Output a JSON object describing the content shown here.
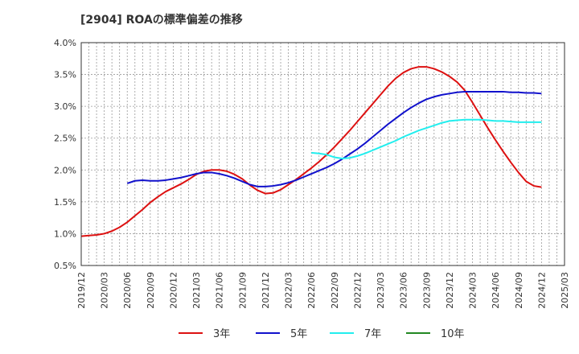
{
  "chart_data": {
    "type": "line",
    "title": "[2904]  ROAの標準偏差の推移",
    "xlabel": "",
    "ylabel": "",
    "ylim": [
      0.5,
      4.0
    ],
    "yticks": [
      0.5,
      1.0,
      1.5,
      2.0,
      2.5,
      3.0,
      3.5,
      4.0
    ],
    "ytick_labels": [
      "0.5%",
      "1.0%",
      "1.5%",
      "2.0%",
      "2.5%",
      "3.0%",
      "3.5%",
      "4.0%"
    ],
    "xlim": [
      "2019/12",
      "2025/03"
    ],
    "xtick_labels": [
      "2019/12",
      "2020/03",
      "2020/06",
      "2020/09",
      "2020/12",
      "2021/03",
      "2021/06",
      "2021/09",
      "2021/12",
      "2022/03",
      "2022/06",
      "2022/09",
      "2022/12",
      "2023/03",
      "2023/06",
      "2023/09",
      "2023/12",
      "2024/03",
      "2024/06",
      "2024/09",
      "2024/12",
      "2025/03"
    ],
    "grid": true,
    "legend_position": "bottom",
    "series": [
      {
        "name": "3年",
        "color": "#dd1111",
        "points": [
          [
            "2019/12",
            0.96
          ],
          [
            "2020/01",
            0.97
          ],
          [
            "2020/02",
            0.98
          ],
          [
            "2020/03",
            1.0
          ],
          [
            "2020/04",
            1.04
          ],
          [
            "2020/05",
            1.1
          ],
          [
            "2020/06",
            1.18
          ],
          [
            "2020/07",
            1.28
          ],
          [
            "2020/08",
            1.38
          ],
          [
            "2020/09",
            1.49
          ],
          [
            "2020/10",
            1.58
          ],
          [
            "2020/11",
            1.66
          ],
          [
            "2020/12",
            1.72
          ],
          [
            "2021/01",
            1.78
          ],
          [
            "2021/02",
            1.85
          ],
          [
            "2021/03",
            1.93
          ],
          [
            "2021/04",
            1.98
          ],
          [
            "2021/05",
            2.0
          ],
          [
            "2021/06",
            2.0
          ],
          [
            "2021/07",
            1.98
          ],
          [
            "2021/08",
            1.93
          ],
          [
            "2021/09",
            1.86
          ],
          [
            "2021/10",
            1.76
          ],
          [
            "2021/11",
            1.68
          ],
          [
            "2021/12",
            1.63
          ],
          [
            "2022/01",
            1.64
          ],
          [
            "2022/02",
            1.69
          ],
          [
            "2022/03",
            1.77
          ],
          [
            "2022/04",
            1.85
          ],
          [
            "2022/05",
            1.94
          ],
          [
            "2022/06",
            2.03
          ],
          [
            "2022/07",
            2.13
          ],
          [
            "2022/08",
            2.24
          ],
          [
            "2022/09",
            2.36
          ],
          [
            "2022/10",
            2.49
          ],
          [
            "2022/11",
            2.62
          ],
          [
            "2022/12",
            2.76
          ],
          [
            "2023/01",
            2.9
          ],
          [
            "2023/02",
            3.04
          ],
          [
            "2023/03",
            3.18
          ],
          [
            "2023/04",
            3.32
          ],
          [
            "2023/05",
            3.44
          ],
          [
            "2023/06",
            3.53
          ],
          [
            "2023/07",
            3.59
          ],
          [
            "2023/08",
            3.62
          ],
          [
            "2023/09",
            3.62
          ],
          [
            "2023/10",
            3.59
          ],
          [
            "2023/11",
            3.54
          ],
          [
            "2023/12",
            3.47
          ],
          [
            "2024/01",
            3.38
          ],
          [
            "2024/02",
            3.25
          ],
          [
            "2024/03",
            3.06
          ],
          [
            "2024/04",
            2.86
          ],
          [
            "2024/05",
            2.66
          ],
          [
            "2024/06",
            2.47
          ],
          [
            "2024/07",
            2.29
          ],
          [
            "2024/08",
            2.12
          ],
          [
            "2024/09",
            1.96
          ],
          [
            "2024/10",
            1.82
          ],
          [
            "2024/11",
            1.75
          ],
          [
            "2024/12",
            1.73
          ]
        ]
      },
      {
        "name": "5年",
        "color": "#1111cc",
        "points": [
          [
            "2020/06",
            1.79
          ],
          [
            "2020/07",
            1.83
          ],
          [
            "2020/08",
            1.84
          ],
          [
            "2020/09",
            1.83
          ],
          [
            "2020/10",
            1.83
          ],
          [
            "2020/11",
            1.84
          ],
          [
            "2020/12",
            1.86
          ],
          [
            "2021/01",
            1.88
          ],
          [
            "2021/02",
            1.91
          ],
          [
            "2021/03",
            1.94
          ],
          [
            "2021/04",
            1.96
          ],
          [
            "2021/05",
            1.96
          ],
          [
            "2021/06",
            1.94
          ],
          [
            "2021/07",
            1.91
          ],
          [
            "2021/08",
            1.87
          ],
          [
            "2021/09",
            1.82
          ],
          [
            "2021/10",
            1.77
          ],
          [
            "2021/11",
            1.74
          ],
          [
            "2021/12",
            1.74
          ],
          [
            "2022/01",
            1.75
          ],
          [
            "2022/02",
            1.77
          ],
          [
            "2022/03",
            1.8
          ],
          [
            "2022/04",
            1.84
          ],
          [
            "2022/05",
            1.89
          ],
          [
            "2022/06",
            1.94
          ],
          [
            "2022/07",
            1.99
          ],
          [
            "2022/08",
            2.04
          ],
          [
            "2022/09",
            2.1
          ],
          [
            "2022/10",
            2.17
          ],
          [
            "2022/11",
            2.25
          ],
          [
            "2022/12",
            2.33
          ],
          [
            "2023/01",
            2.42
          ],
          [
            "2023/02",
            2.52
          ],
          [
            "2023/03",
            2.62
          ],
          [
            "2023/04",
            2.72
          ],
          [
            "2023/05",
            2.81
          ],
          [
            "2023/06",
            2.9
          ],
          [
            "2023/07",
            2.98
          ],
          [
            "2023/08",
            3.05
          ],
          [
            "2023/09",
            3.11
          ],
          [
            "2023/10",
            3.15
          ],
          [
            "2023/11",
            3.18
          ],
          [
            "2023/12",
            3.2
          ],
          [
            "2024/01",
            3.22
          ],
          [
            "2024/02",
            3.23
          ],
          [
            "2024/03",
            3.23
          ],
          [
            "2024/04",
            3.23
          ],
          [
            "2024/05",
            3.23
          ],
          [
            "2024/06",
            3.23
          ],
          [
            "2024/07",
            3.23
          ],
          [
            "2024/08",
            3.22
          ],
          [
            "2024/09",
            3.22
          ],
          [
            "2024/10",
            3.21
          ],
          [
            "2024/11",
            3.21
          ],
          [
            "2024/12",
            3.2
          ]
        ]
      },
      {
        "name": "7年",
        "color": "#22eeee",
        "points": [
          [
            "2022/06",
            2.27
          ],
          [
            "2022/07",
            2.26
          ],
          [
            "2022/08",
            2.24
          ],
          [
            "2022/09",
            2.2
          ],
          [
            "2022/10",
            2.18
          ],
          [
            "2022/11",
            2.19
          ],
          [
            "2022/12",
            2.22
          ],
          [
            "2023/01",
            2.26
          ],
          [
            "2023/02",
            2.31
          ],
          [
            "2023/03",
            2.36
          ],
          [
            "2023/04",
            2.41
          ],
          [
            "2023/05",
            2.46
          ],
          [
            "2023/06",
            2.52
          ],
          [
            "2023/07",
            2.57
          ],
          [
            "2023/08",
            2.62
          ],
          [
            "2023/09",
            2.66
          ],
          [
            "2023/10",
            2.7
          ],
          [
            "2023/11",
            2.74
          ],
          [
            "2023/12",
            2.77
          ],
          [
            "2024/01",
            2.78
          ],
          [
            "2024/02",
            2.79
          ],
          [
            "2024/03",
            2.79
          ],
          [
            "2024/04",
            2.79
          ],
          [
            "2024/05",
            2.78
          ],
          [
            "2024/06",
            2.77
          ],
          [
            "2024/07",
            2.77
          ],
          [
            "2024/08",
            2.76
          ],
          [
            "2024/09",
            2.75
          ],
          [
            "2024/10",
            2.75
          ],
          [
            "2024/11",
            2.75
          ],
          [
            "2024/12",
            2.75
          ]
        ]
      },
      {
        "name": "10年",
        "color": "#228822",
        "points": []
      }
    ]
  }
}
